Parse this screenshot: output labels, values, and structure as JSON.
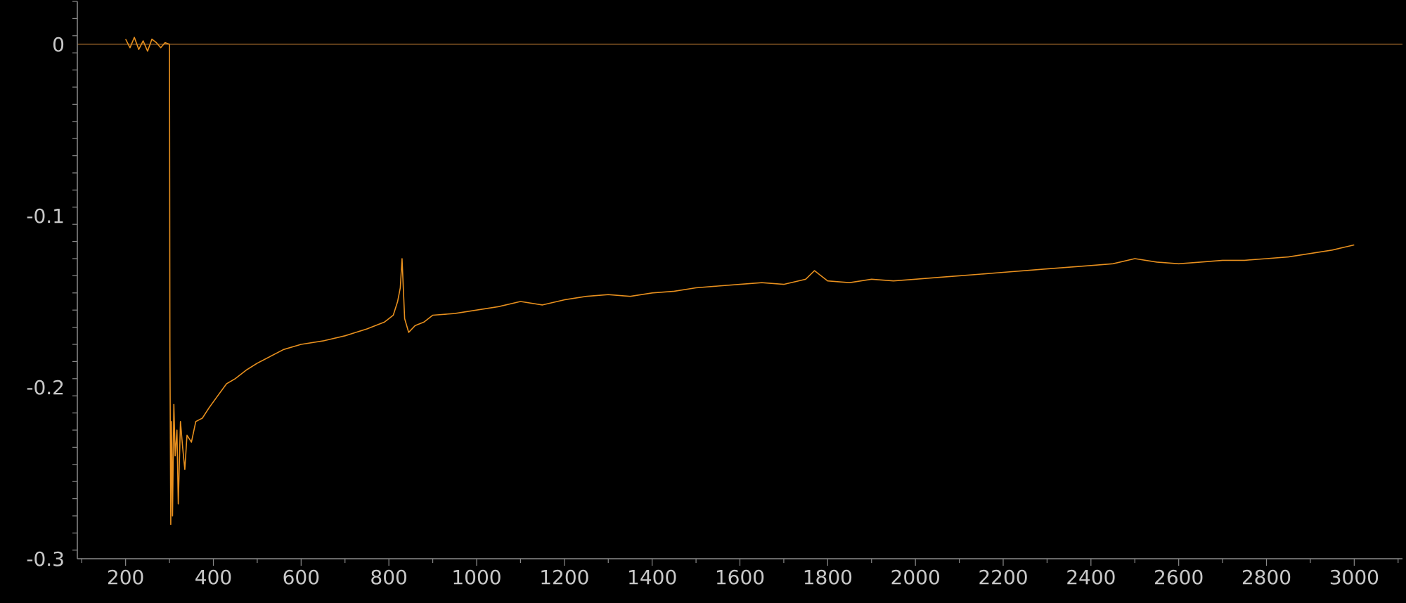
{
  "chart_data": {
    "type": "line",
    "title": "",
    "xlabel": "",
    "ylabel": "",
    "xlim": [
      90,
      3110
    ],
    "ylim": [
      -0.3,
      0.025
    ],
    "x_ticks": [
      200,
      400,
      600,
      800,
      1000,
      1200,
      1400,
      1600,
      1800,
      2000,
      2200,
      2400,
      2600,
      2800,
      3000
    ],
    "x_tick_labels": [
      "200",
      "400",
      "600",
      "800",
      "1000",
      "1200",
      "1400",
      "1600",
      "1800",
      "2000",
      "2200",
      "2400",
      "2600",
      "2800",
      "3000"
    ],
    "y_ticks": [
      0,
      -0.1,
      -0.2,
      -0.3
    ],
    "y_tick_labels": [
      "0",
      "-0.1",
      "-0.2",
      "-0.3"
    ],
    "reference_line_y": 0,
    "grid": false,
    "legend": "none",
    "colors": {
      "series": "#e8901e",
      "axis": "#8a8a8a",
      "reference": "#7a5020",
      "background": "#000000"
    },
    "series": [
      {
        "x": [
          200,
          210,
          220,
          230,
          240,
          250,
          260,
          270,
          280,
          290,
          300,
          301,
          303,
          305,
          307,
          310,
          313,
          317,
          320,
          325,
          330,
          335,
          340,
          350,
          360,
          375,
          390,
          410,
          430,
          450,
          475,
          500,
          530,
          560,
          600,
          650,
          700,
          750,
          790,
          810,
          820,
          826,
          830,
          836,
          845,
          860,
          880,
          900,
          950,
          1000,
          1050,
          1100,
          1150,
          1200,
          1250,
          1300,
          1350,
          1400,
          1450,
          1500,
          1550,
          1600,
          1650,
          1700,
          1750,
          1770,
          1800,
          1850,
          1900,
          1950,
          2000,
          2050,
          2100,
          2150,
          2200,
          2250,
          2300,
          2350,
          2400,
          2450,
          2500,
          2550,
          2600,
          2650,
          2700,
          2750,
          2800,
          2850,
          2900,
          2950,
          3000
        ],
        "y": [
          0.003,
          -0.002,
          0.004,
          -0.003,
          0.002,
          -0.004,
          0.003,
          0.001,
          -0.002,
          0.001,
          0.0,
          -0.177,
          -0.28,
          -0.22,
          -0.275,
          -0.21,
          -0.24,
          -0.225,
          -0.268,
          -0.22,
          -0.235,
          -0.248,
          -0.228,
          -0.232,
          -0.22,
          -0.218,
          -0.212,
          -0.205,
          -0.198,
          -0.195,
          -0.19,
          -0.186,
          -0.182,
          -0.178,
          -0.175,
          -0.173,
          -0.17,
          -0.166,
          -0.162,
          -0.158,
          -0.15,
          -0.142,
          -0.125,
          -0.16,
          -0.168,
          -0.164,
          -0.162,
          -0.158,
          -0.157,
          -0.155,
          -0.153,
          -0.15,
          -0.152,
          -0.149,
          -0.147,
          -0.146,
          -0.147,
          -0.145,
          -0.144,
          -0.142,
          -0.141,
          -0.14,
          -0.139,
          -0.14,
          -0.137,
          -0.132,
          -0.138,
          -0.139,
          -0.137,
          -0.138,
          -0.137,
          -0.136,
          -0.135,
          -0.134,
          -0.133,
          -0.132,
          -0.131,
          -0.13,
          -0.129,
          -0.128,
          -0.125,
          -0.127,
          -0.128,
          -0.127,
          -0.126,
          -0.126,
          -0.125,
          -0.124,
          -0.122,
          -0.12,
          -0.117
        ]
      }
    ]
  }
}
